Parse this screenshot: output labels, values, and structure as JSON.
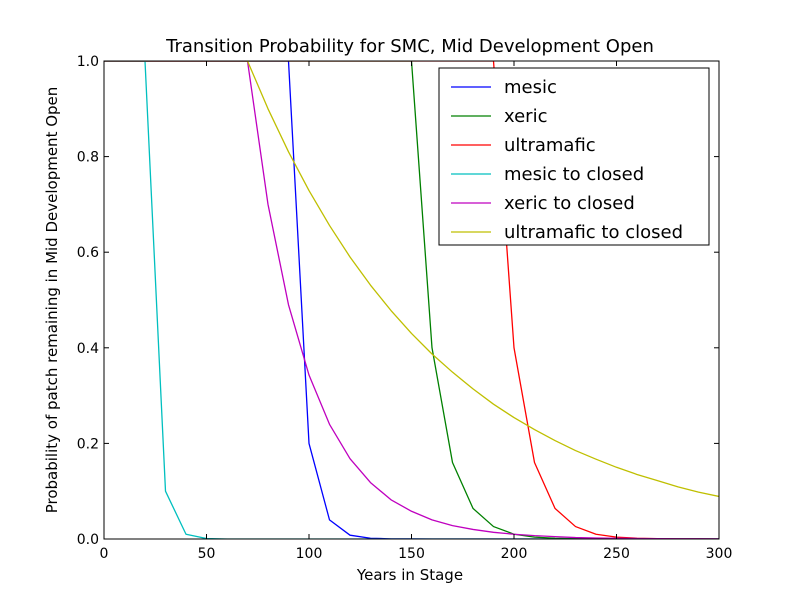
{
  "chart_data": {
    "type": "line",
    "title": "Transition Probability for SMC, Mid Development Open",
    "xlabel": "Years in Stage",
    "ylabel": "Probability of patch remaining in Mid Development Open",
    "xlim": [
      0,
      300
    ],
    "ylim": [
      0,
      1.0
    ],
    "xticks": [
      0,
      50,
      100,
      150,
      200,
      250,
      300
    ],
    "xtick_labels": [
      "0",
      "50",
      "100",
      "150",
      "200",
      "250",
      "300"
    ],
    "yticks": [
      0,
      0.2,
      0.4,
      0.6,
      0.8,
      1.0
    ],
    "ytick_labels": [
      "0.0",
      "0.2",
      "0.4",
      "0.6",
      "0.8",
      "1.0"
    ],
    "grid": false,
    "legend_position": "top-right",
    "series": [
      {
        "name": "mesic",
        "color": "#0000ff",
        "x": [
          0,
          10,
          20,
          30,
          40,
          50,
          60,
          70,
          80,
          90,
          100,
          110,
          120,
          130,
          140,
          150,
          160,
          170,
          180,
          190,
          200,
          210,
          220,
          230,
          240,
          250,
          260,
          270,
          280,
          290,
          300
        ],
        "y": [
          1,
          1,
          1,
          1,
          1,
          1,
          1,
          1,
          1,
          1,
          0.2,
          0.04,
          0.008,
          0.0016,
          0.0003,
          0.0001,
          0,
          0,
          0,
          0,
          0,
          0,
          0,
          0,
          0,
          0,
          0,
          0,
          0,
          0,
          0
        ]
      },
      {
        "name": "xeric",
        "color": "#008000",
        "x": [
          0,
          10,
          20,
          30,
          40,
          50,
          60,
          70,
          80,
          90,
          100,
          110,
          120,
          130,
          140,
          150,
          160,
          170,
          180,
          190,
          200,
          210,
          220,
          230,
          240,
          250,
          260,
          270,
          280,
          290,
          300
        ],
        "y": [
          1,
          1,
          1,
          1,
          1,
          1,
          1,
          1,
          1,
          1,
          1,
          1,
          1,
          1,
          1,
          1,
          0.4,
          0.16,
          0.064,
          0.026,
          0.01,
          0.004,
          0.0016,
          0.0007,
          0.0003,
          0.0001,
          0,
          0,
          0,
          0,
          0
        ]
      },
      {
        "name": "ultramafic",
        "color": "#ff0000",
        "x": [
          0,
          10,
          20,
          30,
          40,
          50,
          60,
          70,
          80,
          90,
          100,
          110,
          120,
          130,
          140,
          150,
          160,
          170,
          180,
          190,
          200,
          210,
          220,
          230,
          240,
          250,
          260,
          270,
          280,
          290,
          300
        ],
        "y": [
          1,
          1,
          1,
          1,
          1,
          1,
          1,
          1,
          1,
          1,
          1,
          1,
          1,
          1,
          1,
          1,
          1,
          1,
          1,
          1,
          0.4,
          0.16,
          0.064,
          0.026,
          0.01,
          0.004,
          0.0016,
          0.0007,
          0.0003,
          0.0001,
          0
        ]
      },
      {
        "name": "mesic to closed",
        "color": "#00bfbf",
        "x": [
          0,
          10,
          20,
          30,
          40,
          50,
          60,
          70,
          80,
          90,
          100,
          110,
          120,
          130,
          140,
          150,
          160,
          170,
          180,
          190,
          200,
          210,
          220,
          230,
          240,
          250,
          260,
          270,
          280,
          290,
          300
        ],
        "y": [
          1,
          1,
          1,
          0.1,
          0.01,
          0.001,
          0,
          0,
          0,
          0,
          0,
          0,
          0,
          0,
          0,
          0,
          0,
          0,
          0,
          0,
          0,
          0,
          0,
          0,
          0,
          0,
          0,
          0,
          0,
          0,
          0
        ]
      },
      {
        "name": "xeric to closed",
        "color": "#bf00bf",
        "x": [
          0,
          10,
          20,
          30,
          40,
          50,
          60,
          70,
          80,
          90,
          100,
          110,
          120,
          130,
          140,
          150,
          160,
          170,
          180,
          190,
          200,
          210,
          220,
          230,
          240,
          250,
          260,
          270,
          280,
          290,
          300
        ],
        "y": [
          1,
          1,
          1,
          1,
          1,
          1,
          1,
          1,
          0.7,
          0.49,
          0.343,
          0.24,
          0.168,
          0.118,
          0.082,
          0.058,
          0.04,
          0.028,
          0.02,
          0.014,
          0.01,
          0.007,
          0.005,
          0.003,
          0.002,
          0.0016,
          0.0011,
          0.0008,
          0.0005,
          0.0004,
          0.0003
        ]
      },
      {
        "name": "ultramafic to closed",
        "color": "#bfbf00",
        "x": [
          0,
          10,
          20,
          30,
          40,
          50,
          60,
          70,
          80,
          90,
          100,
          110,
          120,
          130,
          140,
          150,
          160,
          170,
          180,
          190,
          200,
          210,
          220,
          230,
          240,
          250,
          260,
          270,
          280,
          290,
          300
        ],
        "y": [
          1,
          1,
          1,
          1,
          1,
          1,
          1,
          1,
          0.9,
          0.81,
          0.729,
          0.656,
          0.59,
          0.531,
          0.478,
          0.43,
          0.387,
          0.349,
          0.314,
          0.282,
          0.254,
          0.229,
          0.206,
          0.185,
          0.167,
          0.15,
          0.135,
          0.122,
          0.109,
          0.098,
          0.089
        ]
      }
    ]
  }
}
